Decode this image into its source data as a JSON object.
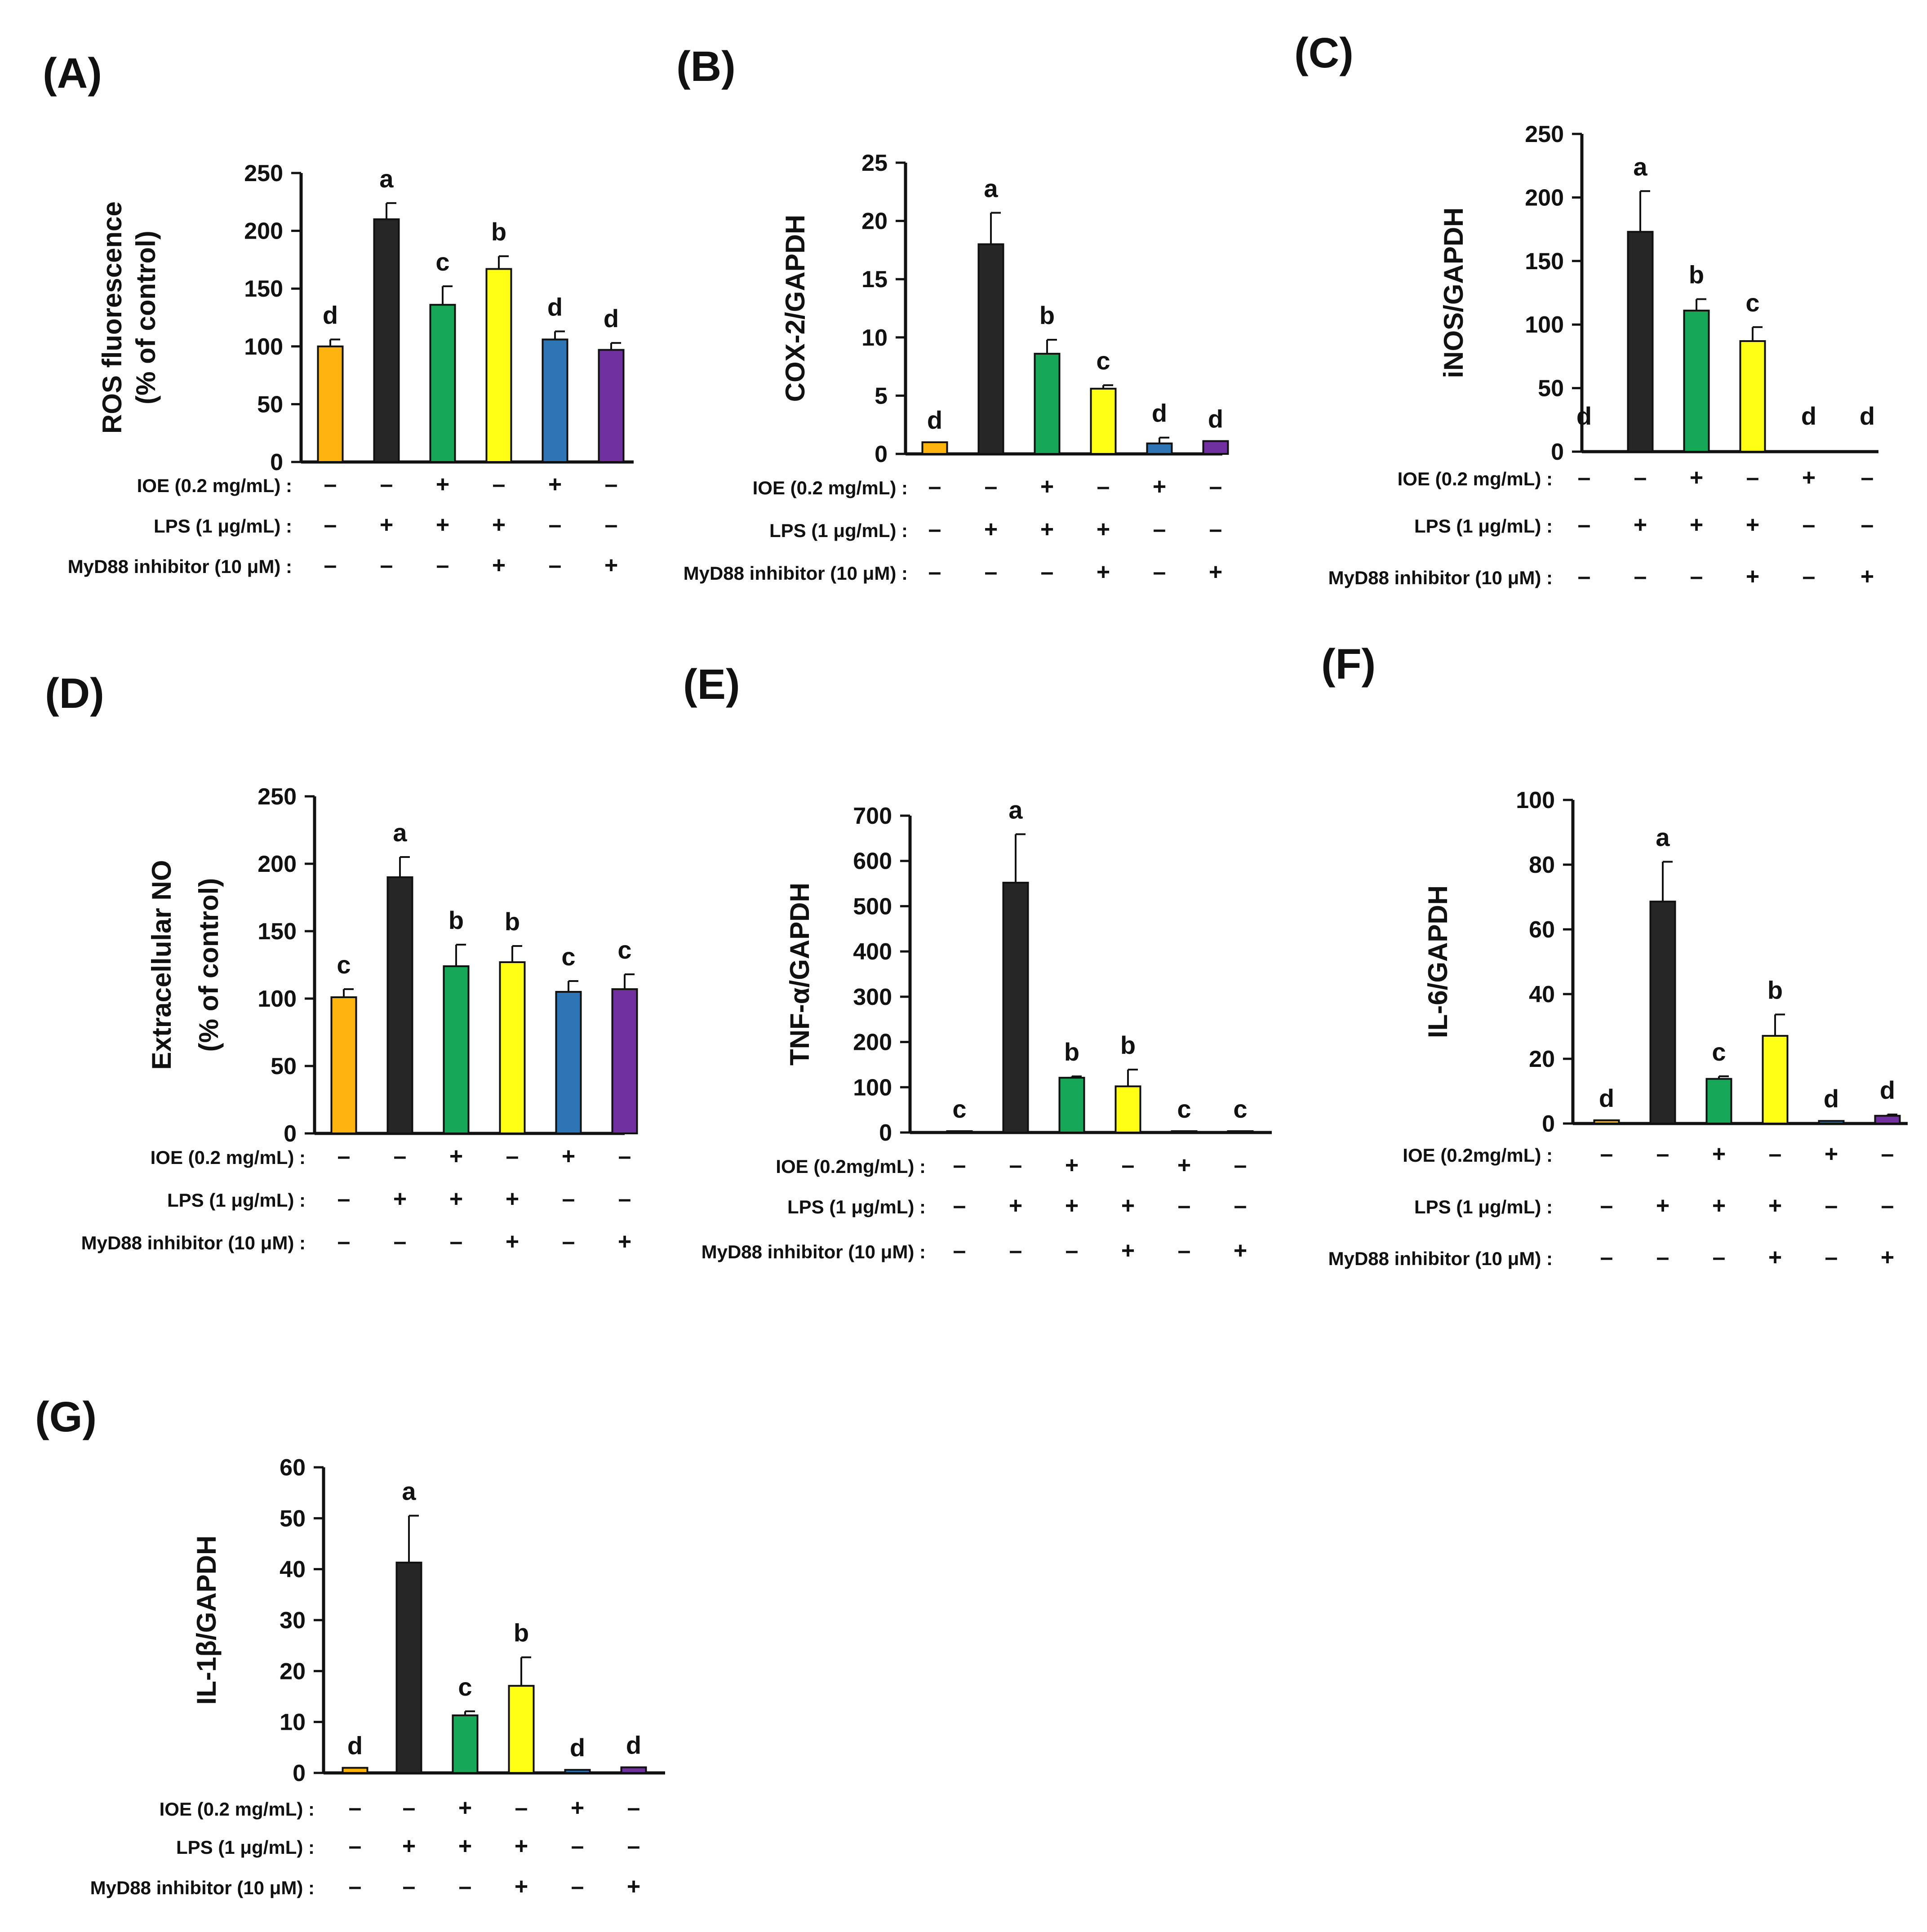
{
  "colors": [
    "#FFB30F",
    "#262626",
    "#17A758",
    "#FFFF16",
    "#2E75B6",
    "#7030A0"
  ],
  "chart_data": [
    {
      "type": "bar",
      "panel": "(A)",
      "ylabel": "ROS fluorescence",
      "ylabel2": "(% of control)",
      "ylim": [
        0,
        250
      ],
      "yticks": [
        "0",
        "50",
        "100",
        "150",
        "200",
        "250"
      ],
      "values": [
        100,
        210,
        136,
        167,
        106,
        97
      ],
      "errors": [
        6,
        14,
        16,
        11,
        7,
        6
      ],
      "letters": [
        "d",
        "a",
        "c",
        "b",
        "d",
        "d"
      ],
      "conditions": [
        {
          "label": "IOE (0.2 mg/mL) :",
          "signs": [
            "–",
            "–",
            "+",
            "–",
            "+",
            "–"
          ]
        },
        {
          "label": "LPS (1 μg/mL) :",
          "signs": [
            "–",
            "+",
            "+",
            "+",
            "–",
            "–"
          ]
        },
        {
          "label": "MyD88 inhibitor (10 μM) :",
          "signs": [
            "–",
            "–",
            "–",
            "+",
            "–",
            "+"
          ]
        }
      ]
    },
    {
      "type": "bar",
      "panel": "(B)",
      "ylabel": "COX-2/GAPDH",
      "ylabel2": "",
      "ylim": [
        0,
        25
      ],
      "yticks": [
        "0",
        "5",
        "10",
        "15",
        "20",
        "25"
      ],
      "values": [
        1,
        18,
        8.6,
        5.6,
        0.9,
        1.1
      ],
      "errors": [
        0,
        2.7,
        1.2,
        0.3,
        0.5,
        0
      ],
      "letters": [
        "d",
        "a",
        "b",
        "c",
        "d",
        "d"
      ],
      "conditions": [
        {
          "label": "IOE (0.2 mg/mL) :",
          "signs": [
            "–",
            "–",
            "+",
            "–",
            "+",
            "–"
          ]
        },
        {
          "label": "LPS (1 μg/mL) :",
          "signs": [
            "–",
            "+",
            "+",
            "+",
            "–",
            "–"
          ]
        },
        {
          "label": "MyD88 inhibitor (10 μM) :",
          "signs": [
            "–",
            "–",
            "–",
            "+",
            "–",
            "+"
          ]
        }
      ]
    },
    {
      "type": "bar",
      "panel": "(C)",
      "ylabel": "iNOS/GAPDH",
      "ylabel2": "",
      "ylim": [
        0,
        250
      ],
      "yticks": [
        "0",
        "50",
        "100",
        "150",
        "200",
        "250"
      ],
      "values": [
        0,
        173,
        111,
        87,
        0,
        0
      ],
      "errors": [
        0,
        32,
        9,
        11,
        0,
        0
      ],
      "letters": [
        "d",
        "a",
        "b",
        "c",
        "d",
        "d"
      ],
      "conditions": [
        {
          "label": "IOE (0.2 mg/mL) :",
          "signs": [
            "–",
            "–",
            "+",
            "–",
            "+",
            "–"
          ]
        },
        {
          "label": "LPS (1 μg/mL) :",
          "signs": [
            "–",
            "+",
            "+",
            "+",
            "–",
            "–"
          ]
        },
        {
          "label": "MyD88 inhibitor (10 μM) :",
          "signs": [
            "–",
            "–",
            "–",
            "+",
            "–",
            "+"
          ]
        }
      ]
    },
    {
      "type": "bar",
      "panel": "(D)",
      "ylabel": "Extracellular NO",
      "ylabel2": "(% of control)",
      "ylim": [
        0,
        250
      ],
      "yticks": [
        "0",
        "50",
        "100",
        "150",
        "200",
        "250"
      ],
      "values": [
        101,
        190,
        124,
        127,
        105,
        107
      ],
      "errors": [
        6,
        15,
        16,
        12,
        8,
        11
      ],
      "letters": [
        "c",
        "a",
        "b",
        "b",
        "c",
        "c"
      ],
      "conditions": [
        {
          "label": "IOE (0.2 mg/mL) :",
          "signs": [
            "–",
            "–",
            "+",
            "–",
            "+",
            "–"
          ]
        },
        {
          "label": "LPS (1 μg/mL) :",
          "signs": [
            "–",
            "+",
            "+",
            "+",
            "–",
            "–"
          ]
        },
        {
          "label": "MyD88 inhibitor (10 μM) :",
          "signs": [
            "–",
            "–",
            "–",
            "+",
            "–",
            "+"
          ]
        }
      ]
    },
    {
      "type": "bar",
      "panel": "(E)",
      "ylabel": "TNF-α/GAPDH",
      "ylabel2": "",
      "ylim": [
        0,
        700
      ],
      "yticks": [
        "0",
        "100",
        "200",
        "300",
        "400",
        "500",
        "600",
        "700"
      ],
      "values": [
        3,
        552,
        121,
        102,
        3,
        3
      ],
      "errors": [
        0,
        107,
        3,
        37,
        0,
        0
      ],
      "letters": [
        "c",
        "a",
        "b",
        "b",
        "c",
        "c"
      ],
      "conditions": [
        {
          "label": "IOE (0.2mg/mL) :",
          "signs": [
            "–",
            "–",
            "+",
            "–",
            "+",
            "–"
          ]
        },
        {
          "label": "LPS (1 μg/mL) :",
          "signs": [
            "–",
            "+",
            "+",
            "+",
            "–",
            "–"
          ]
        },
        {
          "label": "MyD88 inhibitor (10 μM) :",
          "signs": [
            "–",
            "–",
            "–",
            "+",
            "–",
            "+"
          ]
        }
      ]
    },
    {
      "type": "bar",
      "panel": "(F)",
      "ylabel": "IL-6/GAPDH",
      "ylabel2": "",
      "ylim": [
        0,
        100
      ],
      "yticks": [
        "0",
        "20",
        "40",
        "60",
        "80",
        "100"
      ],
      "values": [
        1,
        68.6,
        13.8,
        27.1,
        0.8,
        2.4
      ],
      "errors": [
        0,
        12.3,
        0.8,
        6.6,
        0,
        0.4
      ],
      "letters": [
        "d",
        "a",
        "c",
        "b",
        "d",
        "d"
      ],
      "conditions": [
        {
          "label": "IOE (0.2mg/mL) :",
          "signs": [
            "–",
            "–",
            "+",
            "–",
            "+",
            "–"
          ]
        },
        {
          "label": "LPS (1 μg/mL) :",
          "signs": [
            "–",
            "+",
            "+",
            "+",
            "–",
            "–"
          ]
        },
        {
          "label": "MyD88 inhibitor (10 μM) :",
          "signs": [
            "–",
            "–",
            "–",
            "+",
            "–",
            "+"
          ]
        }
      ]
    },
    {
      "type": "bar",
      "panel": "(G)",
      "ylabel": "IL-1β/GAPDH",
      "ylabel2": "",
      "ylim": [
        0,
        60
      ],
      "yticks": [
        "0",
        "10",
        "20",
        "30",
        "40",
        "50",
        "60"
      ],
      "values": [
        1,
        41.3,
        11.3,
        17.1,
        0.6,
        1.1
      ],
      "errors": [
        0,
        9.2,
        0.8,
        5.6,
        0,
        0
      ],
      "letters": [
        "d",
        "a",
        "c",
        "b",
        "d",
        "d"
      ],
      "conditions": [
        {
          "label": "IOE (0.2 mg/mL) :",
          "signs": [
            "–",
            "–",
            "+",
            "–",
            "+",
            "–"
          ]
        },
        {
          "label": "LPS (1 μg/mL) :",
          "signs": [
            "–",
            "+",
            "+",
            "+",
            "–",
            "–"
          ]
        },
        {
          "label": "MyD88 inhibitor (10 μM) :",
          "signs": [
            "–",
            "–",
            "–",
            "+",
            "–",
            "+"
          ]
        }
      ]
    }
  ]
}
